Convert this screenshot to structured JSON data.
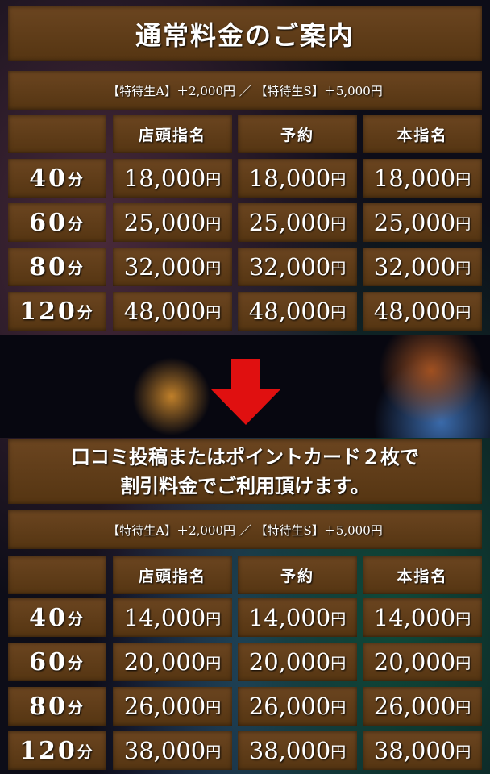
{
  "regular": {
    "title": "通常料金のご案内",
    "note": "【特待生A】＋2,000円 ／ 【特待生S】＋5,000円",
    "headers": [
      "店頭指名",
      "予約",
      "本指名"
    ],
    "rows": [
      {
        "duration": "40",
        "unit": "分",
        "prices": [
          "18,000",
          "18,000",
          "18,000"
        ]
      },
      {
        "duration": "60",
        "unit": "分",
        "prices": [
          "25,000",
          "25,000",
          "25,000"
        ]
      },
      {
        "duration": "80",
        "unit": "分",
        "prices": [
          "32,000",
          "32,000",
          "32,000"
        ]
      },
      {
        "duration": "120",
        "unit": "分",
        "prices": [
          "48,000",
          "48,000",
          "48,000"
        ]
      }
    ]
  },
  "arrow_icon": "red-down-arrow",
  "discount": {
    "title_line1": "口コミ投稿またはポイントカード２枚で",
    "title_line2": "割引料金でご利用頂けます。",
    "note": "【特待生A】＋2,000円 ／ 【特待生S】＋5,000円",
    "headers": [
      "店頭指名",
      "予約",
      "本指名"
    ],
    "rows": [
      {
        "duration": "40",
        "unit": "分",
        "prices": [
          "14,000",
          "14,000",
          "14,000"
        ]
      },
      {
        "duration": "60",
        "unit": "分",
        "prices": [
          "20,000",
          "20,000",
          "20,000"
        ]
      },
      {
        "duration": "80",
        "unit": "分",
        "prices": [
          "26,000",
          "26,000",
          "26,000"
        ]
      },
      {
        "duration": "120",
        "unit": "分",
        "prices": [
          "38,000",
          "38,000",
          "38,000"
        ]
      }
    ]
  },
  "currency": "円",
  "colors": {
    "cell": "#5f3d18",
    "arrow": "#e01010"
  }
}
